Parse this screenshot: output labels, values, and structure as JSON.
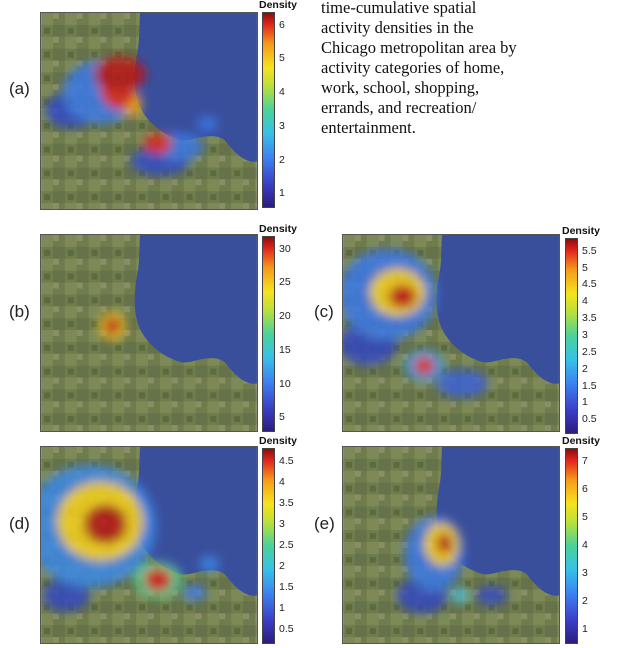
{
  "caption": {
    "lines": [
      "time-cumulative          spatial",
      "activity    densities    in    the",
      "Chicago metropolitan area by",
      "activity categories of home,",
      "work,     school,     shopping,",
      "errands,      and      recreation/",
      "entertainment."
    ]
  },
  "colorbar_title": "Density",
  "panels": [
    {
      "id": "a",
      "label": "(a)",
      "ticks": [
        "6",
        "5",
        "4",
        "3",
        "2",
        "1"
      ]
    },
    {
      "id": "b",
      "label": "(b)",
      "ticks": [
        "30",
        "25",
        "20",
        "15",
        "10",
        "5"
      ]
    },
    {
      "id": "c",
      "label": "(c)",
      "ticks": [
        "5.5",
        "5",
        "4.5",
        "4",
        "3.5",
        "3",
        "2.5",
        "2",
        "1.5",
        "1",
        "0.5"
      ]
    },
    {
      "id": "d",
      "label": "(d)",
      "ticks": [
        "4.5",
        "4",
        "3.5",
        "3",
        "2.5",
        "2",
        "1.5",
        "1",
        "0.5"
      ]
    },
    {
      "id": "e",
      "label": "(e)",
      "ticks": [
        "7",
        "6",
        "5",
        "4",
        "3",
        "2",
        "1"
      ]
    }
  ],
  "colors": {
    "lake": "#3a4f9c",
    "land": "#6c7a4c"
  }
}
